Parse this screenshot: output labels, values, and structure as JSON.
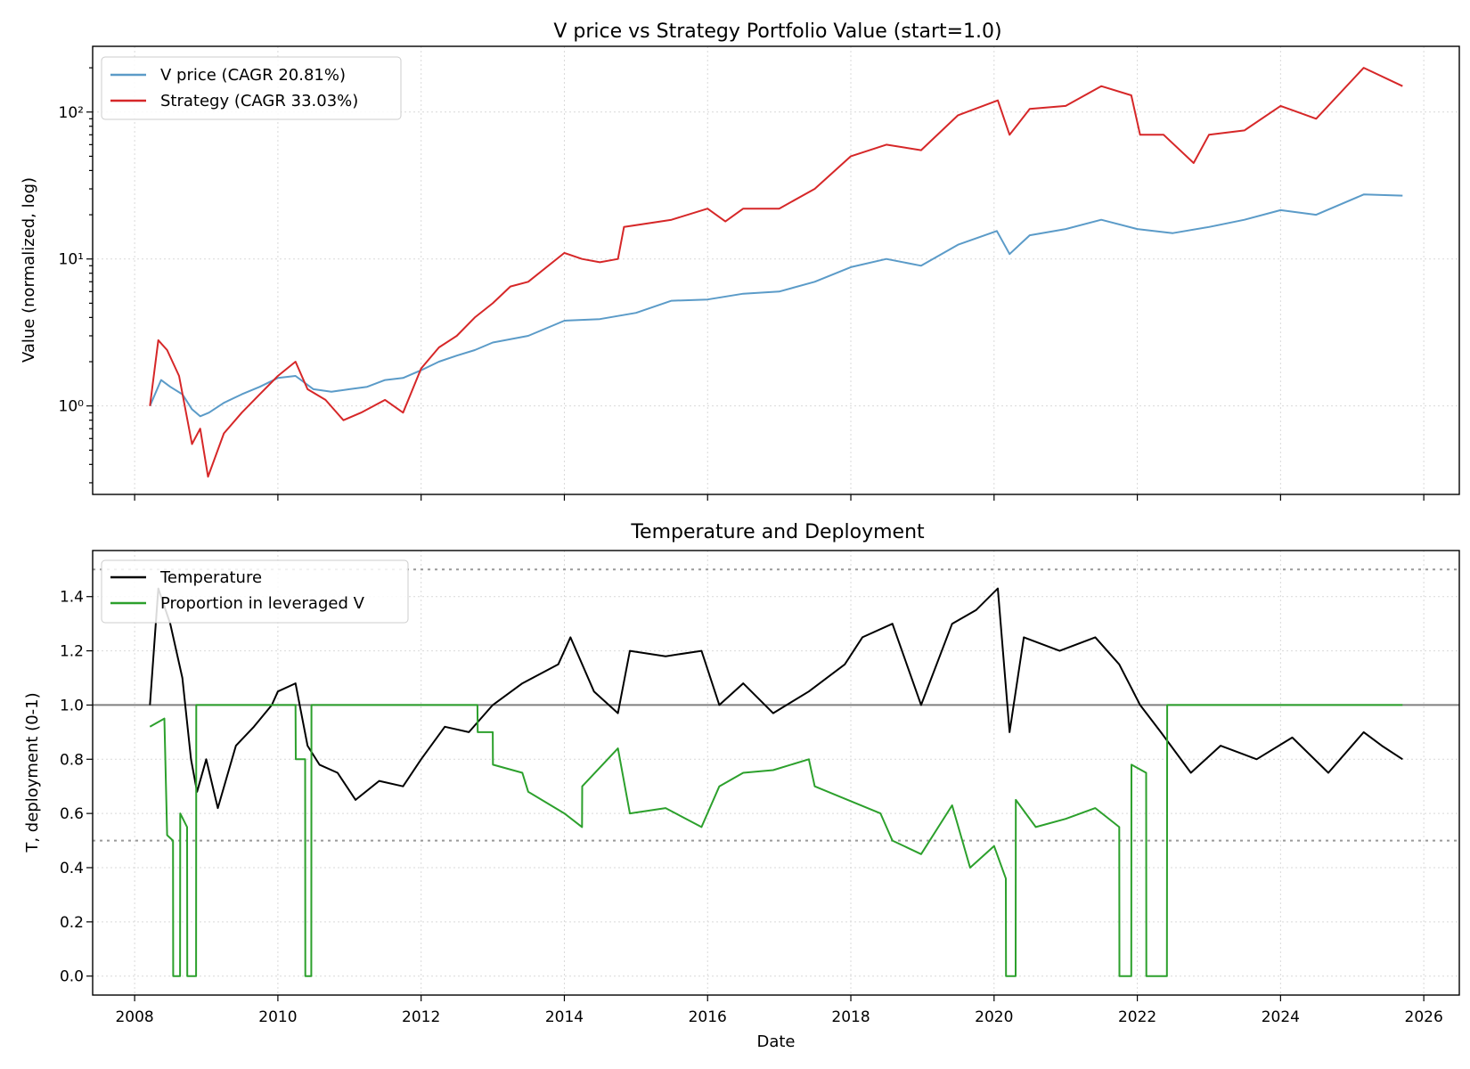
{
  "chart_data": [
    {
      "type": "line",
      "title": "V price vs Strategy Portfolio Value (start=1.0)",
      "xlabel": "",
      "ylabel": "Value (normalized, log)",
      "yscale": "log",
      "ylim": [
        0.25,
        280
      ],
      "xlim": [
        "2007-06-01",
        "2026-07-01"
      ],
      "yticks": [
        {
          "value": 1,
          "label": "10⁰"
        },
        {
          "value": 10,
          "label": "10¹"
        },
        {
          "value": 100,
          "label": "10²"
        }
      ],
      "grid": true,
      "legend": "top-left",
      "series": [
        {
          "name": "V price (CAGR 20.81%)",
          "color": "#5b9bc8",
          "points": [
            [
              "2008-03-19",
              1.0
            ],
            [
              "2008-05-15",
              1.5
            ],
            [
              "2008-07-01",
              1.35
            ],
            [
              "2008-09-01",
              1.2
            ],
            [
              "2008-10-20",
              0.95
            ],
            [
              "2008-12-01",
              0.85
            ],
            [
              "2009-01-15",
              0.9
            ],
            [
              "2009-04-01",
              1.05
            ],
            [
              "2009-07-01",
              1.2
            ],
            [
              "2009-10-01",
              1.35
            ],
            [
              "2010-01-01",
              1.55
            ],
            [
              "2010-04-01",
              1.6
            ],
            [
              "2010-07-01",
              1.3
            ],
            [
              "2010-10-01",
              1.25
            ],
            [
              "2011-01-01",
              1.3
            ],
            [
              "2011-04-01",
              1.35
            ],
            [
              "2011-07-01",
              1.5
            ],
            [
              "2011-10-01",
              1.55
            ],
            [
              "2012-01-01",
              1.75
            ],
            [
              "2012-04-01",
              2.0
            ],
            [
              "2012-07-01",
              2.2
            ],
            [
              "2012-10-01",
              2.4
            ],
            [
              "2013-01-01",
              2.7
            ],
            [
              "2013-07-01",
              3.0
            ],
            [
              "2014-01-01",
              3.8
            ],
            [
              "2014-07-01",
              3.9
            ],
            [
              "2015-01-01",
              4.3
            ],
            [
              "2015-07-01",
              5.2
            ],
            [
              "2016-01-01",
              5.3
            ],
            [
              "2016-07-01",
              5.8
            ],
            [
              "2017-01-01",
              6.0
            ],
            [
              "2017-07-01",
              7.0
            ],
            [
              "2018-01-01",
              8.8
            ],
            [
              "2018-07-01",
              10.0
            ],
            [
              "2018-12-25",
              9.0
            ],
            [
              "2019-07-01",
              12.5
            ],
            [
              "2020-01-15",
              15.5
            ],
            [
              "2020-03-20",
              10.8
            ],
            [
              "2020-07-01",
              14.5
            ],
            [
              "2021-01-01",
              16.0
            ],
            [
              "2021-07-01",
              18.5
            ],
            [
              "2022-01-01",
              16.0
            ],
            [
              "2022-07-01",
              15.0
            ],
            [
              "2023-01-01",
              16.5
            ],
            [
              "2023-07-01",
              18.5
            ],
            [
              "2024-01-01",
              21.5
            ],
            [
              "2024-07-01",
              20.0
            ],
            [
              "2025-03-01",
              27.5
            ],
            [
              "2025-09-15",
              27.0
            ]
          ]
        },
        {
          "name": "Strategy (CAGR 33.03%)",
          "color": "#d62728",
          "points": [
            [
              "2008-03-19",
              1.0
            ],
            [
              "2008-05-01",
              2.8
            ],
            [
              "2008-06-15",
              2.4
            ],
            [
              "2008-08-15",
              1.6
            ],
            [
              "2008-10-20",
              0.55
            ],
            [
              "2008-12-01",
              0.7
            ],
            [
              "2009-01-10",
              0.33
            ],
            [
              "2009-04-01",
              0.65
            ],
            [
              "2009-07-01",
              0.9
            ],
            [
              "2009-10-01",
              1.2
            ],
            [
              "2010-01-01",
              1.6
            ],
            [
              "2010-04-01",
              2.0
            ],
            [
              "2010-06-01",
              1.3
            ],
            [
              "2010-09-01",
              1.1
            ],
            [
              "2010-12-01",
              0.8
            ],
            [
              "2011-03-01",
              0.9
            ],
            [
              "2011-07-01",
              1.1
            ],
            [
              "2011-10-01",
              0.9
            ],
            [
              "2012-01-01",
              1.8
            ],
            [
              "2012-04-01",
              2.5
            ],
            [
              "2012-07-01",
              3.0
            ],
            [
              "2012-10-01",
              4.0
            ],
            [
              "2013-01-01",
              5.0
            ],
            [
              "2013-04-01",
              6.5
            ],
            [
              "2013-07-01",
              7.0
            ],
            [
              "2014-01-01",
              11.0
            ],
            [
              "2014-04-01",
              10.0
            ],
            [
              "2014-07-01",
              9.5
            ],
            [
              "2014-10-01",
              10.0
            ],
            [
              "2014-11-01",
              16.5
            ],
            [
              "2015-07-01",
              18.5
            ],
            [
              "2016-01-01",
              22.0
            ],
            [
              "2016-04-01",
              18.0
            ],
            [
              "2016-07-01",
              22.0
            ],
            [
              "2017-01-01",
              22.0
            ],
            [
              "2017-07-01",
              30.0
            ],
            [
              "2018-01-01",
              50.0
            ],
            [
              "2018-07-01",
              60.0
            ],
            [
              "2018-12-25",
              55.0
            ],
            [
              "2019-07-01",
              95.0
            ],
            [
              "2020-01-20",
              120.0
            ],
            [
              "2020-03-20",
              70.0
            ],
            [
              "2020-07-01",
              105.0
            ],
            [
              "2021-01-01",
              110.0
            ],
            [
              "2021-07-01",
              150.0
            ],
            [
              "2021-12-01",
              130.0
            ],
            [
              "2022-01-15",
              70.0
            ],
            [
              "2022-05-15",
              70.0
            ],
            [
              "2022-10-15",
              45.0
            ],
            [
              "2023-01-01",
              70.0
            ],
            [
              "2023-07-01",
              75.0
            ],
            [
              "2024-01-01",
              110.0
            ],
            [
              "2024-07-01",
              90.0
            ],
            [
              "2025-03-01",
              200.0
            ],
            [
              "2025-09-15",
              150.0
            ]
          ]
        }
      ]
    },
    {
      "type": "line",
      "title": "Temperature and Deployment",
      "xlabel": "Date",
      "ylabel": "T, deployment (0-1)",
      "ylim": [
        -0.07,
        1.57
      ],
      "xlim": [
        "2007-06-01",
        "2026-07-01"
      ],
      "yticks": [
        0.0,
        0.2,
        0.4,
        0.6,
        0.8,
        1.0,
        1.2,
        1.4
      ],
      "ytick_labels": [
        "0.0",
        "0.2",
        "0.4",
        "0.6",
        "0.8",
        "1.0",
        "1.2",
        "1.4"
      ],
      "xticks": [
        2008,
        2010,
        2012,
        2014,
        2016,
        2018,
        2020,
        2022,
        2024,
        2026
      ],
      "xtick_labels": [
        "2008",
        "2010",
        "2012",
        "2014",
        "2016",
        "2018",
        "2020",
        "2022",
        "2024",
        "2026"
      ],
      "reference_lines": [
        {
          "y": 1.0,
          "style": "solid",
          "color": "#808080"
        },
        {
          "y": 1.5,
          "style": "dotted",
          "color": "#999999"
        },
        {
          "y": 0.5,
          "style": "dotted",
          "color": "#999999"
        }
      ],
      "grid": true,
      "legend": "top-left",
      "series": [
        {
          "name": "Temperature",
          "color": "#000000",
          "points": [
            [
              "2008-03-19",
              1.0
            ],
            [
              "2008-05-01",
              1.43
            ],
            [
              "2008-07-01",
              1.3
            ],
            [
              "2008-09-01",
              1.1
            ],
            [
              "2008-10-15",
              0.8
            ],
            [
              "2008-11-15",
              0.68
            ],
            [
              "2009-01-01",
              0.8
            ],
            [
              "2009-03-01",
              0.62
            ],
            [
              "2009-06-01",
              0.85
            ],
            [
              "2009-09-01",
              0.92
            ],
            [
              "2009-12-01",
              1.0
            ],
            [
              "2010-01-01",
              1.05
            ],
            [
              "2010-04-01",
              1.08
            ],
            [
              "2010-06-01",
              0.85
            ],
            [
              "2010-08-01",
              0.78
            ],
            [
              "2010-11-01",
              0.75
            ],
            [
              "2011-02-01",
              0.65
            ],
            [
              "2011-06-01",
              0.72
            ],
            [
              "2011-10-01",
              0.7
            ],
            [
              "2012-01-01",
              0.8
            ],
            [
              "2012-05-01",
              0.92
            ],
            [
              "2012-09-01",
              0.9
            ],
            [
              "2013-01-01",
              1.0
            ],
            [
              "2013-06-01",
              1.08
            ],
            [
              "2013-12-01",
              1.15
            ],
            [
              "2014-02-01",
              1.25
            ],
            [
              "2014-06-01",
              1.05
            ],
            [
              "2014-10-01",
              0.97
            ],
            [
              "2014-12-01",
              1.2
            ],
            [
              "2015-06-01",
              1.18
            ],
            [
              "2015-12-01",
              1.2
            ],
            [
              "2016-03-01",
              1.0
            ],
            [
              "2016-07-01",
              1.08
            ],
            [
              "2016-12-01",
              0.97
            ],
            [
              "2017-06-01",
              1.05
            ],
            [
              "2017-12-01",
              1.15
            ],
            [
              "2018-03-01",
              1.25
            ],
            [
              "2018-08-01",
              1.3
            ],
            [
              "2018-12-25",
              1.0
            ],
            [
              "2019-06-01",
              1.3
            ],
            [
              "2019-10-01",
              1.35
            ],
            [
              "2020-01-20",
              1.43
            ],
            [
              "2020-03-20",
              0.9
            ],
            [
              "2020-06-01",
              1.25
            ],
            [
              "2020-12-01",
              1.2
            ],
            [
              "2021-06-01",
              1.25
            ],
            [
              "2021-10-01",
              1.15
            ],
            [
              "2022-01-15",
              1.0
            ],
            [
              "2022-05-01",
              0.9
            ],
            [
              "2022-10-01",
              0.75
            ],
            [
              "2023-03-01",
              0.85
            ],
            [
              "2023-09-01",
              0.8
            ],
            [
              "2024-03-01",
              0.88
            ],
            [
              "2024-09-01",
              0.75
            ],
            [
              "2025-03-01",
              0.9
            ],
            [
              "2025-06-01",
              0.85
            ],
            [
              "2025-09-15",
              0.8
            ]
          ]
        },
        {
          "name": "Proportion in leveraged V",
          "color": "#2ca02c",
          "points": [
            [
              "2008-03-19",
              0.92
            ],
            [
              "2008-06-01",
              0.95
            ],
            [
              "2008-06-15",
              0.52
            ],
            [
              "2008-07-15",
              0.5
            ],
            [
              "2008-07-16",
              0.0
            ],
            [
              "2008-08-20",
              0.0
            ],
            [
              "2008-08-21",
              0.6
            ],
            [
              "2008-09-25",
              0.55
            ],
            [
              "2008-09-26",
              0.0
            ],
            [
              "2008-11-10",
              0.0
            ],
            [
              "2008-11-11",
              1.0
            ],
            [
              "2010-04-01",
              1.0
            ],
            [
              "2010-04-02",
              0.8
            ],
            [
              "2010-05-20",
              0.8
            ],
            [
              "2010-05-21",
              0.0
            ],
            [
              "2010-06-20",
              0.0
            ],
            [
              "2010-06-21",
              1.0
            ],
            [
              "2012-10-15",
              1.0
            ],
            [
              "2012-10-16",
              0.9
            ],
            [
              "2013-01-01",
              0.9
            ],
            [
              "2013-01-02",
              0.78
            ],
            [
              "2013-06-01",
              0.75
            ],
            [
              "2013-07-01",
              0.68
            ],
            [
              "2014-01-01",
              0.6
            ],
            [
              "2014-04-01",
              0.55
            ],
            [
              "2014-04-02",
              0.7
            ],
            [
              "2014-10-01",
              0.84
            ],
            [
              "2014-12-01",
              0.6
            ],
            [
              "2015-06-01",
              0.62
            ],
            [
              "2015-12-01",
              0.55
            ],
            [
              "2016-03-01",
              0.7
            ],
            [
              "2016-07-01",
              0.75
            ],
            [
              "2016-12-01",
              0.76
            ],
            [
              "2017-06-01",
              0.8
            ],
            [
              "2017-07-01",
              0.7
            ],
            [
              "2018-06-01",
              0.6
            ],
            [
              "2018-08-01",
              0.5
            ],
            [
              "2018-12-25",
              0.45
            ],
            [
              "2019-06-01",
              0.63
            ],
            [
              "2019-09-01",
              0.4
            ],
            [
              "2020-01-01",
              0.48
            ],
            [
              "2020-03-01",
              0.36
            ],
            [
              "2020-03-02",
              0.0
            ],
            [
              "2020-04-20",
              0.0
            ],
            [
              "2020-04-21",
              0.65
            ],
            [
              "2020-08-01",
              0.55
            ],
            [
              "2021-01-01",
              0.58
            ],
            [
              "2021-06-01",
              0.62
            ],
            [
              "2021-10-01",
              0.55
            ],
            [
              "2021-10-02",
              0.0
            ],
            [
              "2021-12-01",
              0.0
            ],
            [
              "2021-12-02",
              0.78
            ],
            [
              "2022-02-15",
              0.75
            ],
            [
              "2022-02-16",
              0.0
            ],
            [
              "2022-06-01",
              0.0
            ],
            [
              "2022-06-02",
              1.0
            ],
            [
              "2025-09-15",
              1.0
            ]
          ]
        }
      ]
    }
  ]
}
